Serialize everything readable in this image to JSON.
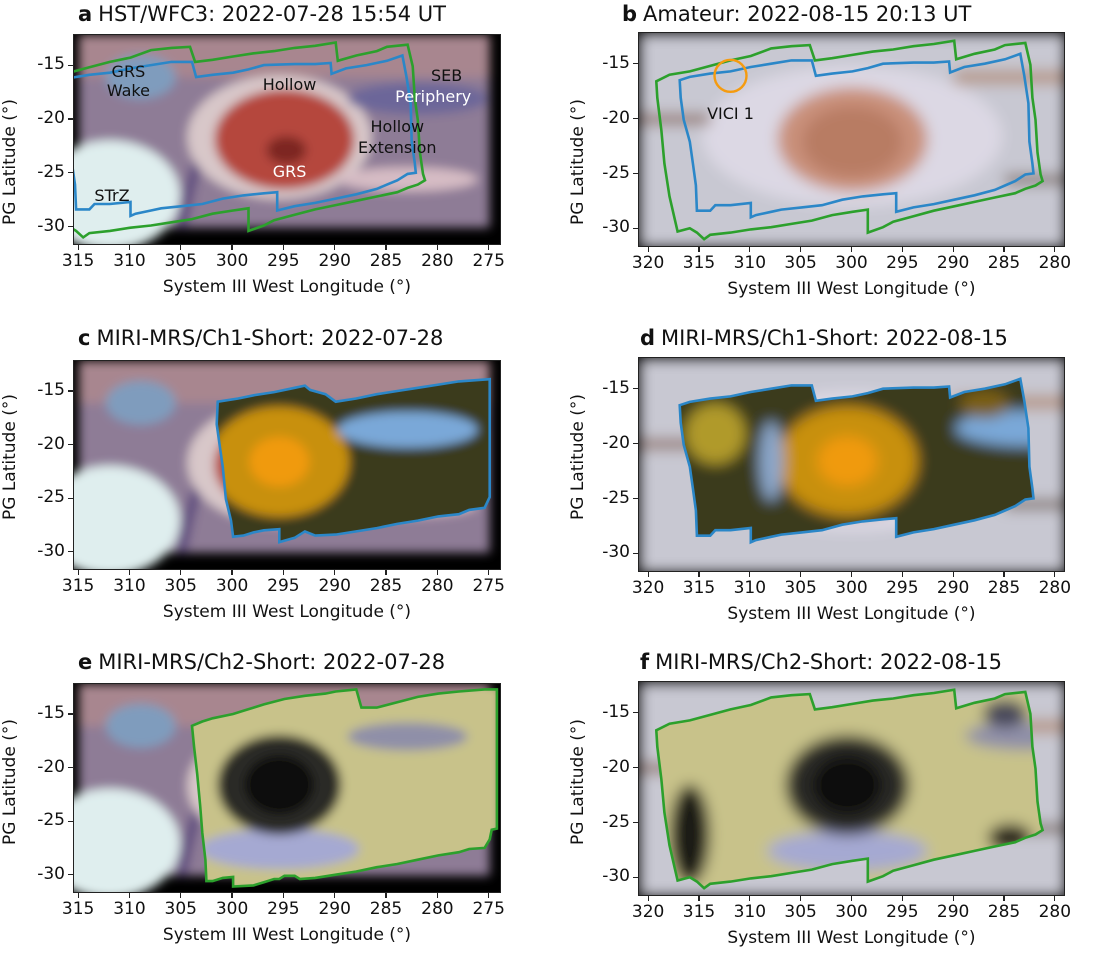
{
  "figure": {
    "panels": [
      {
        "id": "a",
        "letter": "a",
        "title": "HST/WFC3: 2022-07-28 15:54 UT",
        "xlabel": "System III West Longitude (°)",
        "ylabel": "PG Latitude (°)",
        "xticks": [
          315,
          310,
          305,
          300,
          295,
          290,
          285,
          280,
          275
        ],
        "yticks": [
          -15,
          -20,
          -25,
          -30
        ],
        "xlim": [
          315.5,
          273.8
        ],
        "ylim": [
          -31.7,
          -12.1
        ],
        "image_extent": {
          "lon": [
            315,
            275
          ],
          "lat": [
            -30,
            -12.1
          ]
        },
        "image_type": "HST visible-light color composite",
        "outlines": [
          "ch1-blue",
          "ch2-green"
        ],
        "annotations": [
          {
            "text": "GRS\nWake",
            "lon": 310.2,
            "lat": -15.5,
            "color": "#111111"
          },
          {
            "text": "Hollow",
            "lon": 294.5,
            "lat": -16.7,
            "color": "#111111"
          },
          {
            "text": "SEB",
            "lon": 279.2,
            "lat": -15.9,
            "color": "#111111"
          },
          {
            "text": "Periphery",
            "lon": 280.5,
            "lat": -17.9,
            "color": "#ffffff"
          },
          {
            "text": "Hollow",
            "lon": 284.0,
            "lat": -20.6,
            "color": "#111111"
          },
          {
            "text": "Extension",
            "lon": 284.0,
            "lat": -22.6,
            "color": "#111111"
          },
          {
            "text": "GRS",
            "lon": 294.5,
            "lat": -24.8,
            "color": "#ffffff"
          },
          {
            "text": "STrZ",
            "lon": 311.8,
            "lat": -27.1,
            "color": "#111111"
          }
        ]
      },
      {
        "id": "b",
        "letter": "b",
        "title": "Amateur: 2022-08-15 20:13 UT",
        "xlabel": "System III West Longitude (°)",
        "ylabel": "PG Latitude (°)",
        "xticks": [
          320,
          315,
          310,
          305,
          300,
          295,
          290,
          285,
          280
        ],
        "yticks": [
          -15,
          -20,
          -25,
          -30
        ],
        "xlim": [
          321,
          279
        ],
        "ylim": [
          -31.7,
          -12.1
        ],
        "image_extent": {
          "lon": [
            321,
            279
          ],
          "lat": [
            -31.7,
            -12.1
          ]
        },
        "image_type": "Amateur color composite",
        "outlines": [
          "ch1-blue",
          "ch2-green"
        ],
        "annotations": [
          {
            "text": "VICI 1",
            "lon": 312,
            "lat": -19.5,
            "color": "#111111"
          }
        ],
        "markers": [
          {
            "type": "circle",
            "label": "VICI 1 location",
            "lon": 312,
            "lat": -16.0,
            "color": "#f59b0f"
          }
        ]
      },
      {
        "id": "c",
        "letter": "c",
        "title": "MIRI-MRS/Ch1-Short: 2022-07-28",
        "xlabel": "System III West Longitude (°)",
        "ylabel": "PG Latitude (°)",
        "xticks": [
          315,
          310,
          305,
          300,
          295,
          290,
          285,
          280,
          275
        ],
        "yticks": [
          -15,
          -20,
          -25,
          -30
        ],
        "xlim": [
          315.5,
          273.8
        ],
        "ylim": [
          -31.7,
          -12.1
        ],
        "image_extent": {
          "lon": [
            315,
            275
          ],
          "lat": [
            -30,
            -12.1
          ]
        },
        "image_type": "HST background with MIRI Ch1-Short overlay",
        "outlines": [
          "ch1-blue"
        ],
        "annotations": []
      },
      {
        "id": "d",
        "letter": "d",
        "title": "MIRI-MRS/Ch1-Short: 2022-08-15",
        "xlabel": "System III West Longitude (°)",
        "ylabel": "PG Latitude (°)",
        "xticks": [
          320,
          315,
          310,
          305,
          300,
          295,
          290,
          285,
          280
        ],
        "yticks": [
          -15,
          -20,
          -25,
          -30
        ],
        "xlim": [
          321,
          279
        ],
        "ylim": [
          -31.7,
          -12.1
        ],
        "image_extent": {
          "lon": [
            321,
            279
          ],
          "lat": [
            -31.7,
            -12.1
          ]
        },
        "image_type": "Amateur background with MIRI Ch1-Short overlay",
        "outlines": [
          "ch1-blue"
        ],
        "annotations": []
      },
      {
        "id": "e",
        "letter": "e",
        "title": "MIRI-MRS/Ch2-Short: 2022-07-28",
        "xlabel": "System III West Longitude (°)",
        "ylabel": "PG Latitude (°)",
        "xticks": [
          315,
          310,
          305,
          300,
          295,
          290,
          285,
          280,
          275
        ],
        "yticks": [
          -15,
          -20,
          -25,
          -30
        ],
        "xlim": [
          315.5,
          273.8
        ],
        "ylim": [
          -31.7,
          -12.1
        ],
        "image_extent": {
          "lon": [
            315,
            275
          ],
          "lat": [
            -30,
            -12.1
          ]
        },
        "image_type": "HST background with MIRI Ch2-Short overlay",
        "outlines": [
          "ch2-green"
        ],
        "annotations": []
      },
      {
        "id": "f",
        "letter": "f",
        "title": "MIRI-MRS/Ch2-Short: 2022-08-15",
        "xlabel": "System III West Longitude (°)",
        "ylabel": "PG Latitude (°)",
        "xticks": [
          320,
          315,
          310,
          305,
          300,
          295,
          290,
          285,
          280
        ],
        "yticks": [
          -15,
          -20,
          -25,
          -30
        ],
        "xlim": [
          321,
          279
        ],
        "ylim": [
          -31.7,
          -12.1
        ],
        "image_extent": {
          "lon": [
            321,
            279
          ],
          "lat": [
            -31.7,
            -12.1
          ]
        },
        "image_type": "Amateur background with MIRI Ch2-Short overlay",
        "outlines": [
          "ch2-green"
        ],
        "annotations": []
      }
    ],
    "outline_styles": {
      "ch1-blue": {
        "color": "#2b87c8",
        "label": "MIRI Ch1-Short field of view"
      },
      "ch2-green": {
        "color": "#2ca02c",
        "label": "MIRI Ch2-Short field of view"
      }
    },
    "footprints_jul28": {
      "ch1-blue": [
        [
          301.5,
          -15.9
        ],
        [
          299.5,
          -15.6
        ],
        [
          298,
          -15.3
        ],
        [
          296,
          -15
        ],
        [
          294,
          -14.6
        ],
        [
          293,
          -14.4
        ],
        [
          292.5,
          -14.8
        ],
        [
          291,
          -15.2
        ],
        [
          290,
          -15.9
        ],
        [
          288,
          -15.6
        ],
        [
          286,
          -15.2
        ],
        [
          284,
          -14.9
        ],
        [
          282,
          -14.6
        ],
        [
          280,
          -14.3
        ],
        [
          278,
          -14
        ],
        [
          275,
          -13.8
        ],
        [
          275,
          -24.8
        ],
        [
          275.5,
          -25.8
        ],
        [
          277,
          -26
        ],
        [
          278,
          -26.4
        ],
        [
          280,
          -26.6
        ],
        [
          282,
          -27
        ],
        [
          284,
          -27.3
        ],
        [
          286,
          -27.7
        ],
        [
          288,
          -28
        ],
        [
          290,
          -28.3
        ],
        [
          292,
          -28.4
        ],
        [
          293,
          -28
        ],
        [
          294,
          -28.6
        ],
        [
          295.5,
          -29
        ],
        [
          295.5,
          -27.8
        ],
        [
          297,
          -27.9
        ],
        [
          298,
          -28.1
        ],
        [
          299,
          -28.4
        ],
        [
          300,
          -28.5
        ],
        [
          300.2,
          -27
        ],
        [
          300.7,
          -25
        ],
        [
          301,
          -22
        ],
        [
          301.3,
          -20
        ],
        [
          301.6,
          -18
        ],
        [
          301.5,
          -15.9
        ]
      ],
      "ch2-green": [
        [
          304,
          -16
        ],
        [
          303,
          -15.6
        ],
        [
          302,
          -15.3
        ],
        [
          300,
          -14.9
        ],
        [
          299,
          -14.6
        ],
        [
          298,
          -14.3
        ],
        [
          297,
          -14
        ],
        [
          295,
          -13.5
        ],
        [
          293,
          -13.2
        ],
        [
          291,
          -13
        ],
        [
          290,
          -12.8
        ],
        [
          288,
          -12.6
        ],
        [
          287.5,
          -14.3
        ],
        [
          286,
          -14.3
        ],
        [
          284,
          -13.8
        ],
        [
          282,
          -13.3
        ],
        [
          280,
          -13
        ],
        [
          278,
          -12.8
        ],
        [
          275.5,
          -12.6
        ],
        [
          274.3,
          -12.6
        ],
        [
          274.3,
          -25.6
        ],
        [
          274.8,
          -25.7
        ],
        [
          275,
          -26.6
        ],
        [
          275.5,
          -27.4
        ],
        [
          277,
          -27.5
        ],
        [
          278,
          -27.8
        ],
        [
          280,
          -28.1
        ],
        [
          282,
          -28.5
        ],
        [
          284,
          -28.9
        ],
        [
          286,
          -29.2
        ],
        [
          288,
          -29.6
        ],
        [
          290,
          -29.9
        ],
        [
          292,
          -30.2
        ],
        [
          293.5,
          -30.3
        ],
        [
          294,
          -30
        ],
        [
          295,
          -30
        ],
        [
          295.5,
          -30.3
        ],
        [
          296,
          -30.3
        ],
        [
          297,
          -30.6
        ],
        [
          298,
          -30.9
        ],
        [
          300,
          -31.0
        ],
        [
          300,
          -30.1
        ],
        [
          301,
          -30.2
        ],
        [
          302,
          -30.5
        ],
        [
          302.6,
          -30.5
        ],
        [
          302.7,
          -28.5
        ],
        [
          303,
          -26
        ],
        [
          303.2,
          -23.5
        ],
        [
          303.5,
          -20.5
        ],
        [
          303.8,
          -18
        ],
        [
          304,
          -16
        ]
      ]
    },
    "footprints_aug15": {
      "ch1-blue": [
        [
          317,
          -16.4
        ],
        [
          316,
          -16.1
        ],
        [
          314,
          -15.8
        ],
        [
          312,
          -15.6
        ],
        [
          310,
          -15.2
        ],
        [
          308,
          -14.9
        ],
        [
          306,
          -14.6
        ],
        [
          304,
          -14.6
        ],
        [
          303.6,
          -16
        ],
        [
          302,
          -15.8
        ],
        [
          300,
          -15.6
        ],
        [
          298.5,
          -15.3
        ],
        [
          297,
          -14.9
        ],
        [
          294,
          -14.8
        ],
        [
          292,
          -14.8
        ],
        [
          290.5,
          -14.7
        ],
        [
          290.4,
          -15.7
        ],
        [
          289,
          -15.2
        ],
        [
          287,
          -14.9
        ],
        [
          285,
          -14.5
        ],
        [
          283.5,
          -14.0
        ],
        [
          283.1,
          -16.0
        ],
        [
          282.7,
          -18.5
        ],
        [
          282.6,
          -22
        ],
        [
          282.3,
          -24
        ],
        [
          282.2,
          -24.9
        ],
        [
          283,
          -25
        ],
        [
          284,
          -25.6
        ],
        [
          285,
          -26
        ],
        [
          286,
          -26.4
        ],
        [
          288,
          -26.9
        ],
        [
          290,
          -27.3
        ],
        [
          292,
          -27.7
        ],
        [
          294,
          -28
        ],
        [
          295.7,
          -28.4
        ],
        [
          295.7,
          -26.7
        ],
        [
          297,
          -26.8
        ],
        [
          299,
          -27
        ],
        [
          301,
          -27.3
        ],
        [
          303,
          -27.8
        ],
        [
          305,
          -28
        ],
        [
          307,
          -28.2
        ],
        [
          308,
          -28.4
        ],
        [
          309.5,
          -28.7
        ],
        [
          310,
          -28.9
        ],
        [
          310,
          -27.6
        ],
        [
          312,
          -27.8
        ],
        [
          313.5,
          -27.8
        ],
        [
          314,
          -28.3
        ],
        [
          315.3,
          -28.3
        ],
        [
          315.4,
          -26
        ],
        [
          315.7,
          -24
        ],
        [
          316,
          -22
        ],
        [
          316.6,
          -20
        ],
        [
          316.9,
          -18
        ],
        [
          317,
          -16.4
        ]
      ],
      "ch2-green": [
        [
          319.3,
          -16.5
        ],
        [
          318,
          -15.9
        ],
        [
          316,
          -15.6
        ],
        [
          314,
          -15.1
        ],
        [
          312,
          -14.6
        ],
        [
          310,
          -14.2
        ],
        [
          308,
          -13.5
        ],
        [
          306,
          -13.3
        ],
        [
          304.2,
          -13.2
        ],
        [
          303.7,
          -14.6
        ],
        [
          302,
          -14.4
        ],
        [
          300,
          -14.1
        ],
        [
          298,
          -13.8
        ],
        [
          296,
          -13.6
        ],
        [
          294,
          -13.3
        ],
        [
          292,
          -13.1
        ],
        [
          290,
          -12.8
        ],
        [
          289.8,
          -14.5
        ],
        [
          288,
          -14.0
        ],
        [
          286,
          -13.6
        ],
        [
          285,
          -13.2
        ],
        [
          283,
          -13.0
        ],
        [
          282.5,
          -15
        ],
        [
          282.3,
          -18
        ],
        [
          282,
          -20
        ],
        [
          281.8,
          -23
        ],
        [
          281.5,
          -25
        ],
        [
          281.3,
          -25.6
        ],
        [
          282,
          -26
        ],
        [
          283,
          -26.3
        ],
        [
          284,
          -26.7
        ],
        [
          286,
          -27.1
        ],
        [
          288,
          -27.5
        ],
        [
          290,
          -27.9
        ],
        [
          292,
          -28.3
        ],
        [
          294,
          -28.8
        ],
        [
          296,
          -29.3
        ],
        [
          297,
          -29.8
        ],
        [
          298.5,
          -30.3
        ],
        [
          298.5,
          -28.2
        ],
        [
          300,
          -28.4
        ],
        [
          302,
          -28.7
        ],
        [
          304,
          -29.2
        ],
        [
          306,
          -29.5
        ],
        [
          308,
          -29.8
        ],
        [
          310,
          -30
        ],
        [
          312,
          -30.3
        ],
        [
          314,
          -30.5
        ],
        [
          314.6,
          -30.9
        ],
        [
          315.3,
          -30.3
        ],
        [
          316,
          -29.9
        ],
        [
          317.2,
          -30.2
        ],
        [
          318,
          -27
        ],
        [
          318.5,
          -24
        ],
        [
          318.8,
          -21
        ],
        [
          319.2,
          -18
        ],
        [
          319.3,
          -16.5
        ]
      ]
    }
  }
}
